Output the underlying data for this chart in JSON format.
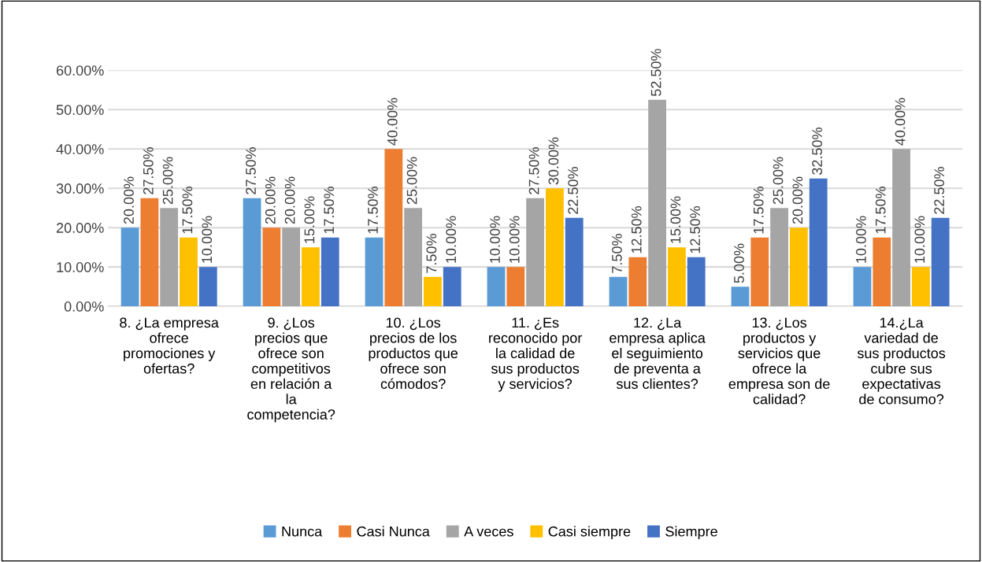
{
  "chart_data": {
    "type": "bar",
    "categories": [
      "8. ¿La empresa ofrece promociones y ofertas?",
      "9. ¿Los precios que ofrece son competitivos en relación a la competencia?",
      "10. ¿Los precios de los productos que ofrece son cómodos?",
      "11. ¿Es reconocido por la calidad de sus productos y servicios?",
      "12. ¿La empresa aplica el seguimiento de preventa a sus clientes?",
      "13. ¿Los productos y servicios que ofrece la empresa son de calidad?",
      "14.¿La variedad de sus productos cubre sus expectativas de consumo?"
    ],
    "series": [
      {
        "name": "Nunca",
        "color": "#5b9bd5",
        "values": [
          20,
          27.5,
          17.5,
          10,
          7.5,
          5,
          10
        ],
        "value_labels": [
          "20.00%",
          "27.50%",
          "17.50%",
          "10.00%",
          "7.50%",
          "5.00%",
          "10.00%"
        ]
      },
      {
        "name": "Casi Nunca",
        "color": "#ed7d31",
        "values": [
          27.5,
          20,
          40,
          10,
          12.5,
          17.5,
          17.5
        ],
        "value_labels": [
          "27.50%",
          "20.00%",
          "40.00%",
          "10.00%",
          "12.50%",
          "17.50%",
          "17.50%"
        ]
      },
      {
        "name": "A veces",
        "color": "#a5a5a5",
        "values": [
          25,
          20,
          25,
          27.5,
          52.5,
          25,
          40
        ],
        "value_labels": [
          "25.00%",
          "20.00%",
          "25.00%",
          "27.50%",
          "52.50%",
          "25.00%",
          "40.00%"
        ]
      },
      {
        "name": "Casi siempre",
        "color": "#ffc000",
        "values": [
          17.5,
          15,
          7.5,
          30,
          15,
          20,
          10
        ],
        "value_labels": [
          "17.50%",
          "15.00%",
          "7.50%",
          "30.00%",
          "15.00%",
          "20.00%",
          "10.00%"
        ]
      },
      {
        "name": "Siempre",
        "color": "#4472c4",
        "values": [
          10,
          17.5,
          10,
          22.5,
          12.5,
          32.5,
          22.5
        ],
        "value_labels": [
          "10.00%",
          "17.50%",
          "10.00%",
          "22.50%",
          "12.50%",
          "32.50%",
          "22.50%"
        ]
      }
    ],
    "ylim": [
      0,
      60
    ],
    "yticks": [
      {
        "value": 0,
        "label": "0.00%"
      },
      {
        "value": 10,
        "label": "10.00%"
      },
      {
        "value": 20,
        "label": "20.00%"
      },
      {
        "value": 30,
        "label": "30.00%"
      },
      {
        "value": 40,
        "label": "40.00%"
      },
      {
        "value": 50,
        "label": "50.00%"
      },
      {
        "value": 60,
        "label": "60.00%"
      }
    ],
    "grid": "y",
    "legend": "bottom"
  }
}
